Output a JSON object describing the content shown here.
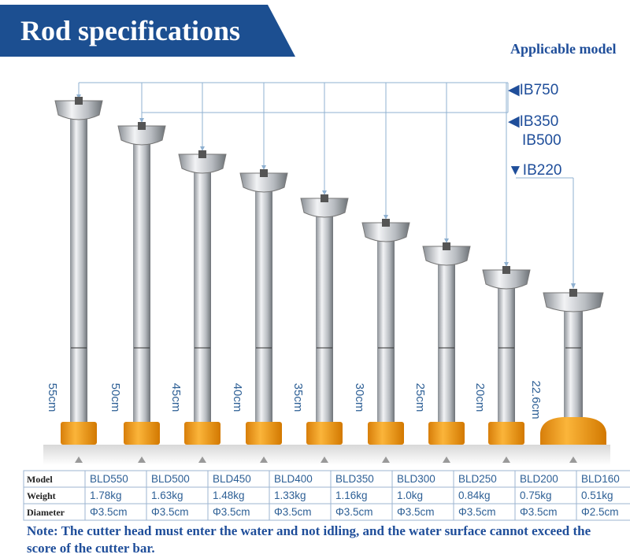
{
  "header": {
    "title": "Rod specifications"
  },
  "applicable": {
    "label": "Applicable model",
    "models": [
      "◀IB750",
      "◀IB350",
      "IB500",
      "▼IB220"
    ]
  },
  "rods": [
    {
      "length": "55cm"
    },
    {
      "length": "50cm"
    },
    {
      "length": "45cm"
    },
    {
      "length": "40cm"
    },
    {
      "length": "35cm"
    },
    {
      "length": "30cm"
    },
    {
      "length": "25cm"
    },
    {
      "length": "20cm"
    },
    {
      "length": "22.6cm"
    }
  ],
  "table": {
    "rows": [
      [
        "Model",
        "BLD550",
        "BLD500",
        "BLD450",
        "BLD400",
        "BLD350",
        "BLD300",
        "BLD250",
        "BLD200",
        "BLD160"
      ],
      [
        "Weight",
        "1.78kg",
        "1.63kg",
        "1.48kg",
        "1.33kg",
        "1.16kg",
        "1.0kg",
        "0.84kg",
        "0.75kg",
        "0.51kg"
      ],
      [
        "Diameter",
        "Φ3.5cm",
        "Φ3.5cm",
        "Φ3.5cm",
        "Φ3.5cm",
        "Φ3.5cm",
        "Φ3.5cm",
        "Φ3.5cm",
        "Φ3.5cm",
        "Φ2.5cm"
      ]
    ]
  },
  "note": "Note: The cutter head must enter the water and not idling, and the water surface cannot exceed the score of the cutter bar."
}
